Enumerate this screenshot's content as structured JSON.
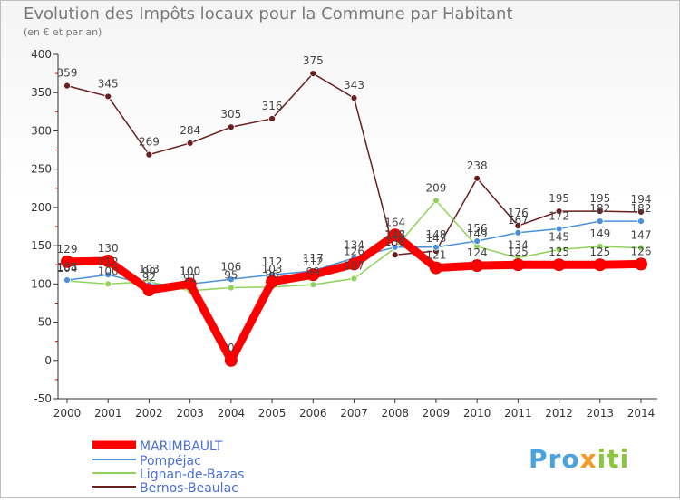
{
  "chart_data": {
    "type": "line",
    "title": "Evolution des Impôts locaux pour la Commune par Habitant",
    "subtitle": "(en € et par an)",
    "xlabel": "",
    "ylabel": "",
    "x": [
      "2000",
      "2001",
      "2002",
      "2003",
      "2004",
      "2005",
      "2006",
      "2007",
      "2008",
      "2009",
      "2010",
      "2011",
      "2012",
      "2013",
      "2014"
    ],
    "ylim": [
      -50,
      400
    ],
    "yticks": [
      -50,
      0,
      50,
      100,
      150,
      200,
      250,
      300,
      350,
      400
    ],
    "grid": false,
    "legend_position": "bottom-left",
    "series": [
      {
        "name": "MARIMBAULT",
        "color": "#ff0000",
        "values": [
          129,
          130,
          92,
          100,
          0,
          103,
          112,
          126,
          164,
          121,
          124,
          125,
          125,
          125,
          126
        ]
      },
      {
        "name": "Pompéjac",
        "color": "#4a90d9",
        "values": [
          105,
          112,
          99,
          100,
          106,
          112,
          117,
          134,
          148,
          148,
          156,
          167,
          172,
          182,
          182
        ]
      },
      {
        "name": "Lignan-de-Bazas",
        "color": "#8fd35b",
        "values": [
          104,
          100,
          103,
          91,
          95,
          96,
          99,
          107,
          147,
          209,
          149,
          134,
          145,
          149,
          147
        ]
      },
      {
        "name": "Bernos-Beaulac",
        "color": "#6b1e1e",
        "values": [
          359,
          345,
          269,
          284,
          305,
          316,
          375,
          343,
          138,
          143,
          238,
          176,
          195,
          195,
          194
        ]
      }
    ]
  },
  "brand": {
    "part1": "Pro",
    "x_letter": "x",
    "part2": "iti"
  }
}
